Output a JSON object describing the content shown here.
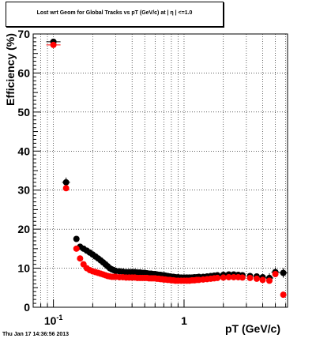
{
  "header": {
    "title": "Lost wrt Geom for Global Tracks vs pT (GeV/c) at | η | <=1.0"
  },
  "footer": {
    "timestamp": "Thu Jan 17 14:36:56 2013"
  },
  "chart_data": {
    "type": "scatter",
    "title": "Lost wrt Geom for Global Tracks vs pT (GeV/c) at | η | <=1.0",
    "xlabel": "pT (GeV/c)",
    "ylabel": "Efficiency (%)",
    "xscale": "log",
    "xlim": [
      0.07,
      6.2
    ],
    "ylim": [
      0,
      70
    ],
    "grid": true,
    "x_tick_labels": [
      {
        "value": 0.1,
        "base": "10",
        "exp": "-1"
      },
      {
        "value": 1,
        "base": "1",
        "exp": ""
      }
    ],
    "y_ticks": [
      0,
      10,
      20,
      30,
      40,
      50,
      60,
      70
    ],
    "colors": {
      "series_black": "#000000",
      "series_red": "#ff0000"
    },
    "series": [
      {
        "color": "#000000",
        "x": [
          0.1,
          0.125,
          0.15,
          0.16,
          0.17,
          0.18,
          0.19,
          0.2,
          0.21,
          0.22,
          0.23,
          0.24,
          0.25,
          0.26,
          0.27,
          0.28,
          0.29,
          0.3,
          0.32,
          0.34,
          0.36,
          0.38,
          0.4,
          0.42,
          0.44,
          0.46,
          0.48,
          0.5,
          0.52,
          0.54,
          0.56,
          0.58,
          0.6,
          0.62,
          0.64,
          0.66,
          0.68,
          0.7,
          0.72,
          0.75,
          0.78,
          0.8,
          0.83,
          0.86,
          0.9,
          0.95,
          1.0,
          1.05,
          1.1,
          1.15,
          1.2,
          1.25,
          1.3,
          1.4,
          1.5,
          1.6,
          1.7,
          1.8,
          2.0,
          2.2,
          2.4,
          2.6,
          2.8,
          3.2,
          3.6,
          4.0,
          4.5,
          5.0,
          5.75
        ],
        "y": [
          68,
          32,
          17.5,
          15.5,
          15,
          14.5,
          14,
          13.5,
          13,
          12.5,
          12,
          11.5,
          11,
          10.5,
          10,
          9.7,
          9.5,
          9.3,
          9.2,
          9.1,
          9,
          9,
          9,
          9,
          8.9,
          8.9,
          8.8,
          8.8,
          8.7,
          8.6,
          8.6,
          8.5,
          8.5,
          8.4,
          8.3,
          8.3,
          8.2,
          8.2,
          8.1,
          8,
          7.9,
          7.8,
          7.8,
          7.7,
          7.7,
          7.6,
          7.6,
          7.6,
          7.6,
          7.6,
          7.7,
          7.7,
          7.8,
          7.8,
          7.9,
          8,
          8.1,
          8.2,
          8.3,
          8.4,
          8.4,
          8.3,
          8.2,
          8,
          7.9,
          7.7,
          7.5,
          9,
          8.8
        ]
      },
      {
        "color": "#ff0000",
        "x": [
          0.1,
          0.125,
          0.15,
          0.16,
          0.17,
          0.18,
          0.19,
          0.2,
          0.21,
          0.22,
          0.23,
          0.24,
          0.25,
          0.26,
          0.27,
          0.28,
          0.29,
          0.3,
          0.32,
          0.34,
          0.36,
          0.38,
          0.4,
          0.42,
          0.44,
          0.46,
          0.48,
          0.5,
          0.52,
          0.54,
          0.56,
          0.58,
          0.6,
          0.62,
          0.64,
          0.66,
          0.68,
          0.7,
          0.72,
          0.75,
          0.78,
          0.8,
          0.83,
          0.86,
          0.9,
          0.95,
          1.0,
          1.05,
          1.1,
          1.15,
          1.2,
          1.25,
          1.3,
          1.4,
          1.5,
          1.6,
          1.7,
          1.8,
          2.0,
          2.2,
          2.4,
          2.6,
          2.8,
          3.2,
          3.6,
          4.0,
          4.5,
          5.0,
          5.75
        ],
        "y": [
          67.2,
          30.5,
          15,
          12.5,
          11,
          10,
          9.5,
          9.2,
          9,
          8.8,
          8.6,
          8.4,
          8.2,
          8,
          7.9,
          7.8,
          7.8,
          7.8,
          7.7,
          7.7,
          7.6,
          7.6,
          7.6,
          7.6,
          7.5,
          7.5,
          7.5,
          7.5,
          7.5,
          7.4,
          7.4,
          7.4,
          7.4,
          7.3,
          7.3,
          7.2,
          7.2,
          7.1,
          7.1,
          7,
          7,
          6.9,
          6.9,
          6.8,
          6.8,
          6.8,
          6.8,
          6.8,
          6.8,
          6.9,
          6.9,
          7,
          7,
          7.1,
          7.2,
          7.3,
          7.4,
          7.5,
          7.6,
          7.7,
          7.7,
          7.7,
          7.6,
          7.5,
          7.3,
          7,
          6.8,
          8.5,
          3.2
        ]
      }
    ]
  }
}
